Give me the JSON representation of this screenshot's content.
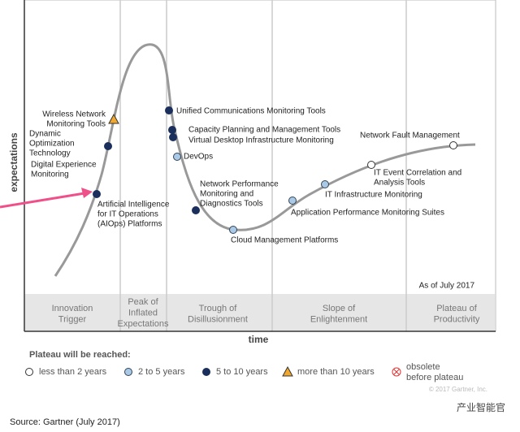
{
  "axes": {
    "y_label": "expectations",
    "x_label": "time"
  },
  "as_of": "As of July 2017",
  "phases": [
    [
      "Innovation",
      "Trigger"
    ],
    [
      "Peak of",
      "Inflated",
      "Expectations"
    ],
    [
      "Trough of",
      "Disillusionment"
    ],
    [
      "Slope of",
      "Enlightenment"
    ],
    [
      "Plateau of",
      "Productivity"
    ]
  ],
  "nodes": [
    {
      "label": [
        "Wireless Network",
        "Monitoring Tools"
      ]
    },
    {
      "label": [
        "Dynamic",
        "Optimization",
        "Technology"
      ]
    },
    {
      "label": [
        "Digital Experience",
        "Monitoring"
      ]
    },
    {
      "label": [
        "Artificial Intelligence",
        "for IT Operations",
        "(AIOps) Platforms"
      ]
    },
    {
      "label": [
        "Unified Communications Monitoring Tools"
      ]
    },
    {
      "label": [
        "Capacity Planning and Management Tools"
      ]
    },
    {
      "label": [
        "Virtual Desktop Infrastructure Monitoring"
      ]
    },
    {
      "label": [
        "DevOps"
      ]
    },
    {
      "label": [
        "Network Performance",
        "Monitoring and",
        "Diagnostics Tools"
      ]
    },
    {
      "label": [
        "Cloud Management Platforms"
      ]
    },
    {
      "label": [
        "Application Performance Monitoring Suites"
      ]
    },
    {
      "label": [
        "IT Infrastructure Monitoring"
      ]
    },
    {
      "label": [
        "IT Event Correlation and",
        "Analysis Tools"
      ]
    },
    {
      "label": [
        "Network Fault Management"
      ]
    }
  ],
  "legend": {
    "title": "Plateau will be reached:",
    "items": [
      [
        "less than 2 years"
      ],
      [
        "2 to 5 years"
      ],
      [
        "5 to 10 years"
      ],
      [
        "more than 10 years"
      ],
      [
        "obsolete",
        "before plateau"
      ]
    ]
  },
  "copyright": "© 2017 Gartner, Inc.",
  "watermark": "产业智能官",
  "source": "Source: Gartner (July 2017)"
}
